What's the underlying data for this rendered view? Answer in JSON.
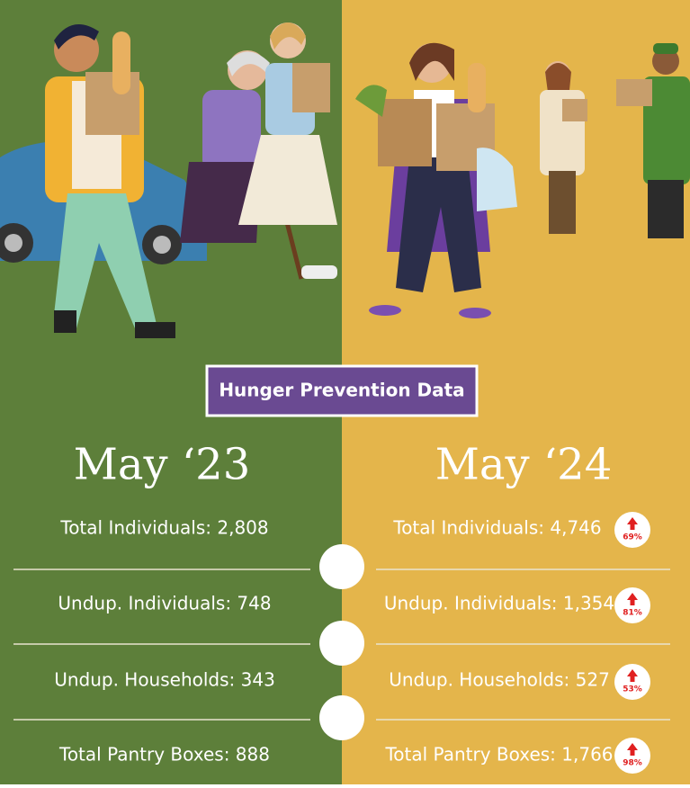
{
  "title": "Hunger Prevention Data",
  "columns": [
    {
      "heading": "May ‘23",
      "rows": [
        {
          "text": "Total Individuals: 2,808"
        },
        {
          "text": "Undup. Individuals: 748"
        },
        {
          "text": "Undup. Households: 343"
        },
        {
          "text": "Total Pantry Boxes: 888"
        }
      ]
    },
    {
      "heading": "May ‘24",
      "rows": [
        {
          "text": "Total Individuals: 4,746",
          "change": "69%"
        },
        {
          "text": "Undup. Individuals: 1,354",
          "change": "81%"
        },
        {
          "text": "Undup. Households: 527",
          "change": "53%"
        },
        {
          "text": "Total Pantry Boxes: 1,766",
          "change": "98%"
        }
      ]
    }
  ]
}
